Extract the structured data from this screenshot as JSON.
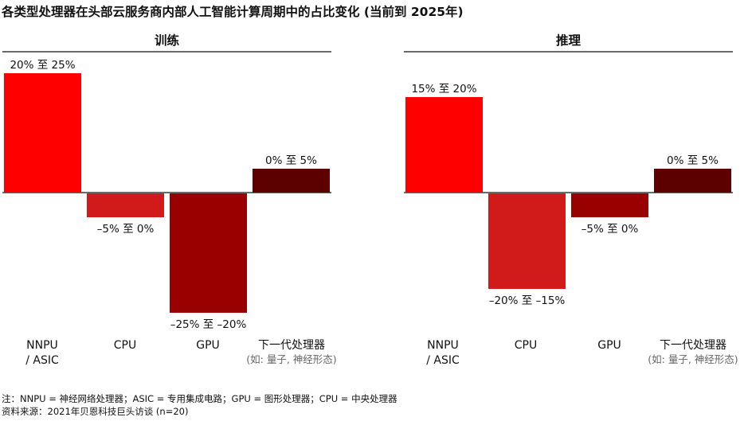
{
  "title": "各类型处理器在头部云服务商内部人工智能计算周期中的占比变化 (当前到 2025年)",
  "chart_data": [
    {
      "type": "bar",
      "title": "训练",
      "categories": [
        {
          "label": "NNPU\n/ ASIC",
          "sublabel": ""
        },
        {
          "label": "CPU",
          "sublabel": ""
        },
        {
          "label": "GPU",
          "sublabel": ""
        },
        {
          "label": "下一代处理器",
          "sublabel": "(如: 量子, 神经形态)"
        }
      ],
      "ranges": [
        [
          20,
          25
        ],
        [
          -5,
          0
        ],
        [
          -25,
          -20
        ],
        [
          0,
          5
        ]
      ],
      "value_labels": [
        "20% 至 25%",
        "–5% 至 0%",
        "–25% 至 –20%",
        "0% 至 5%"
      ],
      "colors": [
        "#ff0000",
        "#d11a1a",
        "#990000",
        "#5c0000"
      ],
      "ylim": [
        -25,
        25
      ]
    },
    {
      "type": "bar",
      "title": "推理",
      "categories": [
        {
          "label": "NNPU\n/ ASIC",
          "sublabel": ""
        },
        {
          "label": "CPU",
          "sublabel": ""
        },
        {
          "label": "GPU",
          "sublabel": ""
        },
        {
          "label": "下一代处理器",
          "sublabel": "(如: 量子, 神经形态)"
        }
      ],
      "ranges": [
        [
          15,
          20
        ],
        [
          -20,
          -15
        ],
        [
          -5,
          0
        ],
        [
          0,
          5
        ]
      ],
      "value_labels": [
        "15% 至 20%",
        "–20% 至 –15%",
        "–5% 至 0%",
        "0% 至 5%"
      ],
      "colors": [
        "#ff0000",
        "#d11a1a",
        "#990000",
        "#5c0000"
      ],
      "ylim": [
        -25,
        25
      ]
    }
  ],
  "notes": {
    "definitions": "注：NNPU = 神经网络处理器；ASIC = 专用集成电路；GPU = 图形处理器；CPU = 中央处理器",
    "source": "资料来源：2021年贝恩科技巨头访谈 (n=20)"
  }
}
